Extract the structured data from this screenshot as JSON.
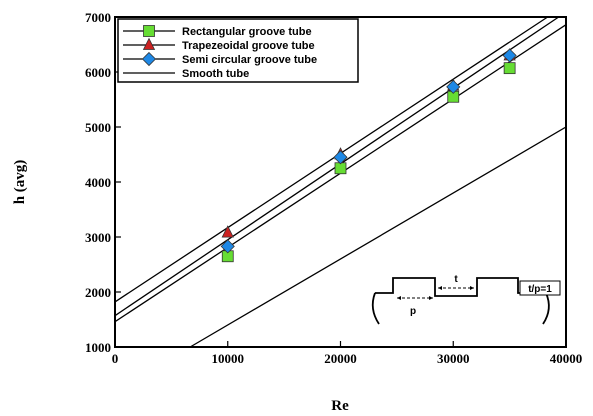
{
  "chart_data": {
    "type": "scatter",
    "xlabel": "Re",
    "ylabel": "h (avg)",
    "xlim": [
      0,
      40000
    ],
    "ylim": [
      1000,
      7000
    ],
    "xticks": [
      0,
      10000,
      20000,
      30000,
      40000
    ],
    "yticks": [
      1000,
      2000,
      3000,
      4000,
      5000,
      6000,
      7000
    ],
    "x_tick_labels": [
      "0",
      "10000",
      "20000",
      "30000",
      "40000"
    ],
    "y_tick_labels": [
      "1000",
      "2000",
      "3000",
      "4000",
      "5000",
      "6000",
      "7000"
    ],
    "grid": false,
    "legend_position": "top-left",
    "series": [
      {
        "name": "Rectangular groove tube",
        "marker": "square",
        "color": "#66dd33",
        "x": [
          10000,
          20000,
          30000,
          35000
        ],
        "y": [
          2650,
          4250,
          5550,
          6070
        ],
        "fit": [
          1460,
          135
        ]
      },
      {
        "name": "Trapezeoidal groove tube",
        "marker": "triangle",
        "color": "#cc2222",
        "x": [
          10000,
          20000,
          30000,
          35000
        ],
        "y": [
          3080,
          4500,
          5750,
          6300
        ],
        "fit": [
          1820,
          135
        ]
      },
      {
        "name": "Semi circular groove tube",
        "marker": "diamond",
        "color": "#1e88e5",
        "x": [
          10000,
          20000,
          30000,
          35000
        ],
        "y": [
          2830,
          4450,
          5730,
          6300
        ],
        "fit": [
          1570,
          138
        ]
      },
      {
        "name": "Smooth tube",
        "marker": "none",
        "color": "#000000",
        "x": [],
        "y": [],
        "fit": [
          200,
          120
        ]
      }
    ],
    "inset": {
      "labels": {
        "t": "t",
        "p": "p",
        "ratio": "t/p=1"
      }
    }
  }
}
